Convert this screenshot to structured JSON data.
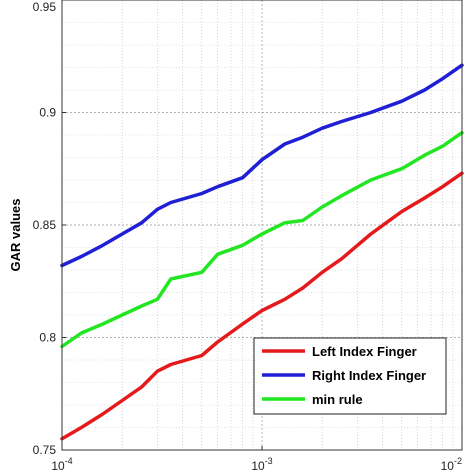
{
  "chart_data": {
    "type": "line",
    "title": "",
    "xlabel": "",
    "ylabel": "GAR values",
    "xscale": "log",
    "xlim": [
      0.0001,
      0.01
    ],
    "ylim": [
      0.75,
      0.95
    ],
    "grid": true,
    "legend_position": "bottom-right",
    "x": [
      0.0001,
      0.000125,
      0.00016,
      0.0002,
      0.00025,
      0.0003,
      0.00035,
      0.0005,
      0.0006,
      0.0008,
      0.001,
      0.0013,
      0.0016,
      0.002,
      0.0025,
      0.0035,
      0.005,
      0.0065,
      0.008,
      0.01
    ],
    "y_ticks": [
      {
        "value": 0.75,
        "label": "0.75"
      },
      {
        "value": 0.8,
        "label": "0.8"
      },
      {
        "value": 0.85,
        "label": "0.85"
      },
      {
        "value": 0.9,
        "label": "0.9"
      },
      {
        "value": 0.95,
        "label": "0.95"
      }
    ],
    "x_ticks": [
      {
        "value": 0.0001,
        "base": "10",
        "exp": "-4"
      },
      {
        "value": 0.001,
        "base": "10",
        "exp": "-3"
      },
      {
        "value": 0.01,
        "base": "10",
        "exp": "-2"
      }
    ],
    "series": [
      {
        "name": "Left Index Finger",
        "color": "#e41a1c",
        "values": [
          0.755,
          0.76,
          0.766,
          0.772,
          0.778,
          0.785,
          0.788,
          0.792,
          0.798,
          0.806,
          0.812,
          0.817,
          0.822,
          0.829,
          0.835,
          0.846,
          0.856,
          0.862,
          0.867,
          0.873
        ]
      },
      {
        "name": "Right Index Finger",
        "color": "#1f1fd6",
        "values": [
          0.832,
          0.836,
          0.841,
          0.846,
          0.851,
          0.857,
          0.86,
          0.864,
          0.867,
          0.871,
          0.879,
          0.886,
          0.889,
          0.893,
          0.896,
          0.9,
          0.905,
          0.91,
          0.915,
          0.921
        ]
      },
      {
        "name": "min rule",
        "color": "#22e622",
        "values": [
          0.796,
          0.802,
          0.806,
          0.81,
          0.814,
          0.817,
          0.826,
          0.829,
          0.837,
          0.841,
          0.846,
          0.851,
          0.852,
          0.858,
          0.863,
          0.87,
          0.875,
          0.881,
          0.885,
          0.891
        ]
      }
    ]
  }
}
